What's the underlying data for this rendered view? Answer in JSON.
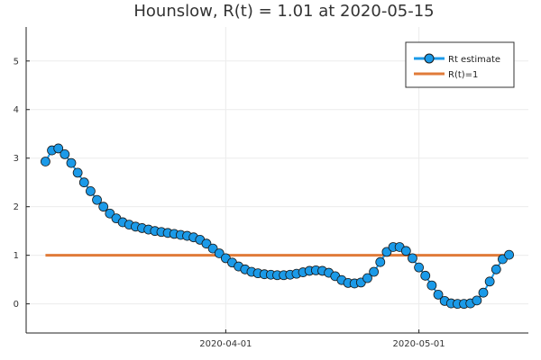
{
  "colors": {
    "estimate": "#1b9ae8",
    "reference": "#e07b39",
    "marker_stroke": "#1a1a1a"
  },
  "chart_data": {
    "type": "line",
    "title": "Hounslow, R(t) = 1.01 at 2020-05-15",
    "xlabel": "",
    "ylabel": "",
    "x_start": "2020-03-04",
    "x_step_days": 1,
    "xlim": [
      "2020-03-01",
      "2020-05-18"
    ],
    "ylim": [
      -0.6,
      5.7
    ],
    "x_ticks": [
      {
        "label": "2020-04-01",
        "date": "2020-04-01"
      },
      {
        "label": "2020-05-01",
        "date": "2020-05-01"
      }
    ],
    "y_ticks": [
      0,
      1,
      2,
      3,
      4,
      5
    ],
    "grid": true,
    "legend_position": "top-right",
    "series": [
      {
        "name": "Rt estimate",
        "style": "line-markers",
        "values": [
          2.93,
          3.16,
          3.2,
          3.08,
          2.9,
          2.7,
          2.5,
          2.32,
          2.14,
          2.0,
          1.86,
          1.76,
          1.68,
          1.63,
          1.59,
          1.56,
          1.53,
          1.5,
          1.48,
          1.46,
          1.44,
          1.42,
          1.4,
          1.37,
          1.32,
          1.24,
          1.14,
          1.04,
          0.94,
          0.85,
          0.77,
          0.71,
          0.66,
          0.63,
          0.61,
          0.6,
          0.59,
          0.59,
          0.6,
          0.62,
          0.65,
          0.68,
          0.69,
          0.68,
          0.64,
          0.57,
          0.49,
          0.43,
          0.42,
          0.44,
          0.53,
          0.66,
          0.86,
          1.07,
          1.17,
          1.17,
          1.09,
          0.94,
          0.75,
          0.58,
          0.38,
          0.19,
          0.06,
          0.01,
          0.0,
          0.0,
          0.01,
          0.07,
          0.23,
          0.46,
          0.71,
          0.92,
          1.01
        ]
      },
      {
        "name": "R(t)=1",
        "style": "line",
        "x": [
          "2020-03-04",
          "2020-05-15"
        ],
        "values": [
          1,
          1
        ]
      }
    ]
  }
}
